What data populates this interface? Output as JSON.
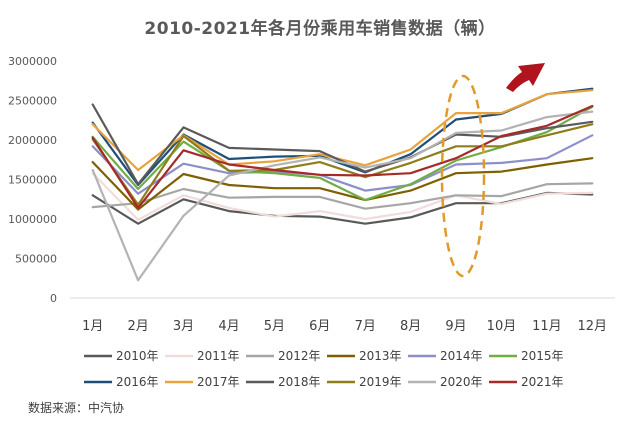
{
  "chart_data": {
    "type": "line",
    "title": "2010-2021年各月份乘用车销售数据（辆）",
    "source": "数据来源：中汽协",
    "categories": [
      "1月",
      "2月",
      "3月",
      "4月",
      "5月",
      "6月",
      "7月",
      "8月",
      "9月",
      "10月",
      "11月",
      "12月"
    ],
    "ylim": [
      0,
      3000000
    ],
    "yticks": [
      "0",
      "500000",
      "1000000",
      "1500000",
      "2000000",
      "2500000",
      "3000000"
    ],
    "grid": false,
    "legend_position": "bottom",
    "series": [
      {
        "name": "2010年",
        "color": "#595959",
        "values": [
          1300000,
          940000,
          1250000,
          1100000,
          1040000,
          1030000,
          940000,
          1020000,
          1200000,
          1200000,
          1330000,
          1310000
        ]
      },
      {
        "name": "2011年",
        "color": "#f2dcdb",
        "values": [
          1580000,
          990000,
          1300000,
          1140000,
          1030000,
          1100000,
          1000000,
          1090000,
          1300000,
          1190000,
          1320000,
          1330000
        ]
      },
      {
        "name": "2012年",
        "color": "#a6a6a6",
        "values": [
          1150000,
          1200000,
          1380000,
          1270000,
          1280000,
          1280000,
          1130000,
          1200000,
          1300000,
          1290000,
          1440000,
          1450000
        ]
      },
      {
        "name": "2013年",
        "color": "#7f6000",
        "values": [
          1720000,
          1120000,
          1570000,
          1430000,
          1390000,
          1390000,
          1240000,
          1360000,
          1580000,
          1600000,
          1690000,
          1770000
        ]
      },
      {
        "name": "2014年",
        "color": "#8e8ec9",
        "values": [
          1920000,
          1320000,
          1700000,
          1580000,
          1600000,
          1560000,
          1360000,
          1430000,
          1690000,
          1710000,
          1770000,
          2060000
        ]
      },
      {
        "name": "2015年",
        "color": "#70ad47",
        "values": [
          2040000,
          1380000,
          1980000,
          1610000,
          1580000,
          1520000,
          1240000,
          1440000,
          1740000,
          1910000,
          2100000,
          2420000
        ]
      },
      {
        "name": "2016年",
        "color": "#1f4e79",
        "values": [
          2220000,
          1430000,
          2070000,
          1760000,
          1790000,
          1800000,
          1590000,
          1820000,
          2260000,
          2330000,
          2580000,
          2650000
        ]
      },
      {
        "name": "2017年",
        "color": "#e8a33d",
        "values": [
          2200000,
          1620000,
          2060000,
          1690000,
          1730000,
          1820000,
          1680000,
          1880000,
          2340000,
          2340000,
          2580000,
          2630000
        ]
      },
      {
        "name": "2018年",
        "color": "#5a5a5a",
        "values": [
          2450000,
          1440000,
          2160000,
          1900000,
          1880000,
          1860000,
          1600000,
          1780000,
          2070000,
          2040000,
          2150000,
          2230000
        ]
      },
      {
        "name": "2019年",
        "color": "#8f7d1a",
        "values": [
          2010000,
          1180000,
          2050000,
          1610000,
          1620000,
          1720000,
          1530000,
          1710000,
          1920000,
          1920000,
          2060000,
          2200000
        ]
      },
      {
        "name": "2020年",
        "color": "#b3b3b3",
        "values": [
          1620000,
          224000,
          1040000,
          1550000,
          1680000,
          1780000,
          1650000,
          1770000,
          2090000,
          2120000,
          2290000,
          2360000
        ]
      },
      {
        "name": "2021年",
        "color": "#a52a2a",
        "values": [
          2030000,
          1140000,
          1870000,
          1690000,
          1620000,
          1560000,
          1550000,
          1580000,
          1770000,
          2050000,
          2180000,
          2430000
        ]
      }
    ]
  }
}
